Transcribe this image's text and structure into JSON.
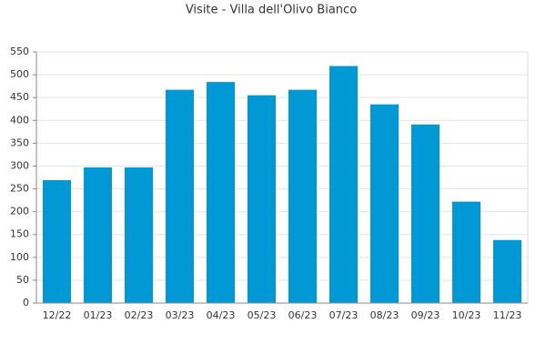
{
  "chart_data": {
    "type": "bar",
    "title": "Visite - Villa dell'Olivo Bianco",
    "categories": [
      "12/22",
      "01/23",
      "02/23",
      "03/23",
      "04/23",
      "05/23",
      "06/23",
      "07/23",
      "08/23",
      "09/23",
      "10/23",
      "11/23"
    ],
    "values": [
      269,
      297,
      297,
      467,
      484,
      455,
      467,
      519,
      435,
      391,
      222,
      138
    ],
    "color": "#0099d6",
    "ylim": [
      0,
      550
    ],
    "yticks": [
      0,
      50,
      100,
      150,
      200,
      250,
      300,
      350,
      400,
      450,
      500,
      550
    ],
    "grid": true
  }
}
